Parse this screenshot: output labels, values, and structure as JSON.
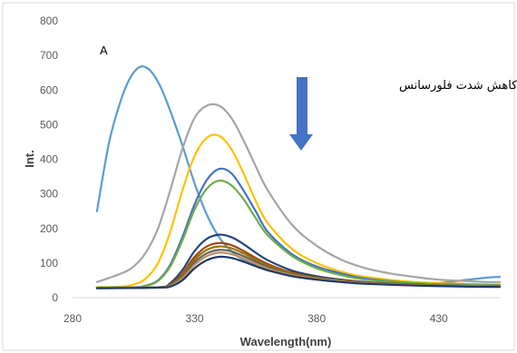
{
  "chart_data": {
    "type": "line",
    "title": "",
    "xlabel": "Wavelength(nm)",
    "ylabel": "Int.",
    "xlim": [
      280,
      455
    ],
    "ylim": [
      0,
      800
    ],
    "x_ticks": [
      "280",
      "330",
      "380",
      "430"
    ],
    "y_ticks": [
      "0",
      "100",
      "200",
      "300",
      "400",
      "500",
      "600",
      "700",
      "800"
    ],
    "grid": "none",
    "legend": "none",
    "annotations": {
      "panel_label": "A",
      "note": "کاهش شدت فلورسانس",
      "arrow_direction": "down",
      "arrow_color": "#4472c4"
    },
    "series": [
      {
        "color": "#5b9bd5",
        "x": [
          290,
          295,
          300,
          304,
          308,
          312,
          316,
          320,
          325,
          330,
          335,
          340,
          345,
          350,
          360,
          370,
          380,
          390,
          400,
          410,
          420,
          430,
          440,
          450,
          455
        ],
        "y": [
          250,
          450,
          575,
          640,
          668,
          655,
          610,
          540,
          440,
          330,
          240,
          175,
          135,
          110,
          85,
          70,
          60,
          52,
          45,
          40,
          38,
          42,
          50,
          58,
          60
        ]
      },
      {
        "color": "#a5a5a5",
        "x": [
          290,
          300,
          305,
          310,
          315,
          320,
          325,
          330,
          335,
          340,
          345,
          350,
          355,
          360,
          370,
          380,
          390,
          400,
          410,
          420,
          430,
          440,
          450,
          455
        ],
        "y": [
          45,
          70,
          90,
          130,
          200,
          310,
          430,
          520,
          555,
          555,
          520,
          455,
          380,
          310,
          210,
          150,
          110,
          85,
          70,
          60,
          52,
          48,
          45,
          45
        ]
      },
      {
        "color": "#ffc000",
        "x": [
          290,
          300,
          305,
          310,
          315,
          320,
          325,
          330,
          335,
          340,
          345,
          350,
          355,
          360,
          370,
          380,
          390,
          400,
          420,
          440,
          455
        ],
        "y": [
          30,
          32,
          38,
          55,
          100,
          190,
          310,
          410,
          462,
          468,
          430,
          360,
          280,
          215,
          140,
          100,
          75,
          60,
          45,
          40,
          38
        ]
      },
      {
        "color": "#4472c4",
        "x": [
          290,
          305,
          310,
          315,
          320,
          325,
          330,
          335,
          340,
          345,
          350,
          355,
          360,
          370,
          380,
          390,
          400,
          420,
          440,
          455
        ],
        "y": [
          30,
          30,
          35,
          50,
          95,
          175,
          270,
          340,
          372,
          360,
          310,
          250,
          190,
          125,
          90,
          70,
          55,
          42,
          38,
          36
        ]
      },
      {
        "color": "#70ad47",
        "x": [
          290,
          305,
          310,
          315,
          320,
          325,
          330,
          335,
          340,
          345,
          350,
          355,
          360,
          370,
          380,
          390,
          400,
          420,
          440,
          455
        ],
        "y": [
          30,
          30,
          34,
          48,
          90,
          165,
          255,
          315,
          338,
          325,
          285,
          230,
          180,
          120,
          85,
          65,
          52,
          42,
          37,
          35
        ]
      },
      {
        "color": "#264478",
        "x": [
          290,
          315,
          320,
          325,
          330,
          335,
          340,
          345,
          350,
          355,
          360,
          370,
          380,
          390,
          400,
          420,
          440,
          455
        ],
        "y": [
          28,
          30,
          42,
          80,
          135,
          170,
          182,
          175,
          155,
          130,
          108,
          78,
          62,
          52,
          45,
          38,
          34,
          33
        ]
      },
      {
        "color": "#9e480e",
        "x": [
          290,
          315,
          320,
          325,
          330,
          335,
          340,
          345,
          350,
          355,
          360,
          370,
          380,
          390,
          400,
          420,
          440,
          455
        ],
        "y": [
          28,
          30,
          38,
          70,
          118,
          148,
          158,
          152,
          135,
          115,
          97,
          72,
          58,
          50,
          44,
          37,
          34,
          33
        ]
      },
      {
        "color": "#997300",
        "x": [
          290,
          315,
          320,
          325,
          330,
          335,
          340,
          345,
          350,
          355,
          360,
          370,
          380,
          390,
          400,
          420,
          440,
          455
        ],
        "y": [
          28,
          30,
          36,
          65,
          110,
          138,
          148,
          143,
          128,
          110,
          93,
          70,
          57,
          49,
          43,
          37,
          34,
          33
        ]
      },
      {
        "color": "#636363",
        "x": [
          290,
          315,
          320,
          325,
          330,
          335,
          340,
          345,
          350,
          355,
          360,
          370,
          380,
          390,
          400,
          420,
          440,
          455
        ],
        "y": [
          28,
          30,
          35,
          60,
          102,
          128,
          138,
          134,
          120,
          104,
          88,
          67,
          55,
          48,
          42,
          36,
          33,
          32
        ]
      },
      {
        "color": "#c09060",
        "x": [
          290,
          315,
          320,
          325,
          330,
          335,
          340,
          345,
          350,
          355,
          360,
          370,
          380,
          390,
          400,
          420,
          440,
          455
        ],
        "y": [
          28,
          30,
          34,
          56,
          95,
          120,
          130,
          126,
          113,
          98,
          84,
          65,
          54,
          47,
          41,
          36,
          33,
          32
        ]
      },
      {
        "color": "#1f3864",
        "x": [
          290,
          315,
          320,
          325,
          330,
          335,
          340,
          345,
          350,
          355,
          360,
          370,
          380,
          390,
          400,
          420,
          440,
          455
        ],
        "y": [
          27,
          29,
          32,
          50,
          85,
          108,
          118,
          115,
          104,
          91,
          79,
          62,
          52,
          45,
          40,
          35,
          32,
          31
        ]
      }
    ]
  }
}
